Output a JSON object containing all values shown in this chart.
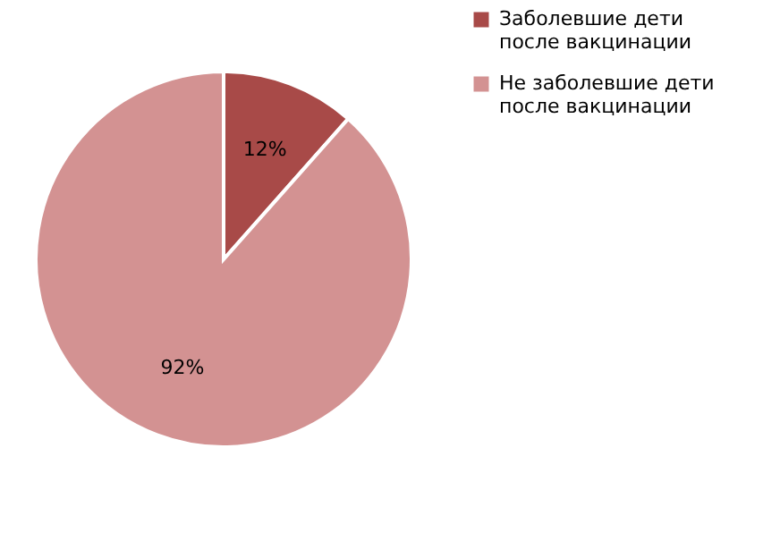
{
  "chart_data": {
    "type": "pie",
    "categories": [
      "Заболевшие дети после вакцинации",
      "Не заболевшие дети после вакцинации"
    ],
    "values": [
      12,
      92
    ],
    "colors": [
      "#a84a48",
      "#d39292"
    ],
    "value_labels": [
      "12%",
      "92%"
    ],
    "legend": "right"
  }
}
